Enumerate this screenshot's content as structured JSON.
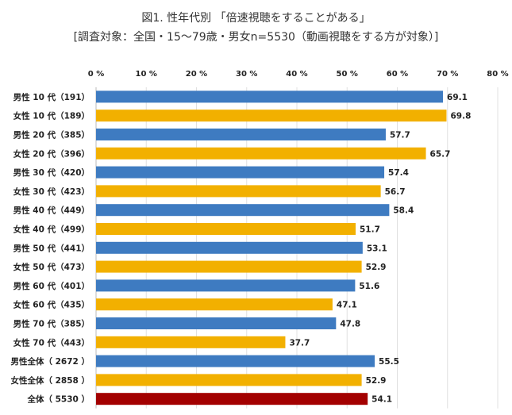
{
  "chart_data": {
    "type": "bar",
    "orientation": "horizontal",
    "title": "図1. 性年代別 「倍速視聴をすることがある」",
    "subtitle": "[調査対象：全国・15～79歳・男女n=5530（動画視聴をする方が対象）]",
    "xlim": [
      0,
      80
    ],
    "xticks": [
      "0 %",
      "10 %",
      "20 %",
      "30 %",
      "40 %",
      "50 %",
      "60 %",
      "70 %",
      "80 %"
    ],
    "grid": true,
    "categories": [
      "男性 10 代（191）",
      "女性 10 代（189）",
      "男性 20 代（385）",
      "女性 20 代（396）",
      "男性 30 代（420）",
      "女性 30 代（423）",
      "男性 40 代（449）",
      "女性 40 代（499）",
      "男性 50 代（441）",
      "女性 50 代（473）",
      "男性 60 代（401）",
      "女性 60 代（435）",
      "男性 70 代（385）",
      "女性 70 代（443）",
      "男性全体（ 2672 ）",
      "女性全体（ 2858 ）",
      "全体（ 5530 ）"
    ],
    "values": [
      69.1,
      69.8,
      57.7,
      65.7,
      57.4,
      56.7,
      58.4,
      51.7,
      53.1,
      52.9,
      51.6,
      47.1,
      47.8,
      37.7,
      55.5,
      52.9,
      54.1
    ],
    "value_labels": [
      "69.1",
      "69.8",
      "57.7",
      "65.7",
      "57.4",
      "56.7",
      "58.4",
      "51.7",
      "53.1",
      "52.9",
      "51.6",
      "47.1",
      "47.8",
      "37.7",
      "55.5",
      "52.9",
      "54.1"
    ],
    "colors": {
      "male": "#3E7BC1",
      "female": "#F2B000",
      "total": "#A30000"
    },
    "bar_groups": [
      "male",
      "female",
      "male",
      "female",
      "male",
      "female",
      "male",
      "female",
      "male",
      "female",
      "male",
      "female",
      "male",
      "female",
      "male",
      "female",
      "total"
    ]
  }
}
